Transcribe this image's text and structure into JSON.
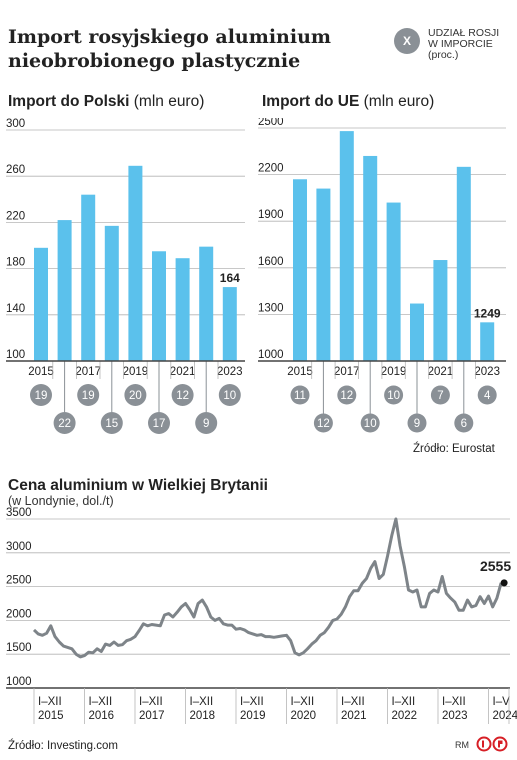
{
  "header": {
    "title_line1": "Import rosyjskiego aluminium",
    "title_line2": "nieobrobionego plastycznie"
  },
  "legend": {
    "symbol": "X",
    "line1": "UDZIAŁ ROSJI",
    "line2": "W IMPORCIE",
    "line3": "(proc.)"
  },
  "left_panel": {
    "title_bold": "Import do Polski",
    "title_unit": "(mln euro)"
  },
  "right_panel": {
    "title_bold": "Import do UE",
    "title_unit": "(mln euro)"
  },
  "source_top": "Źródło: Eurostat",
  "bottom_panel": {
    "title": "Cena aluminium w Wielkiej Brytanii",
    "subtitle": "(w Londynie, dol./t)"
  },
  "source_bottom": "Źródło: Investing.com",
  "credit": "RM",
  "colors": {
    "bar": "#5bc1ec",
    "badge": "#8a9096",
    "line": "#7e8489",
    "text": "#222222",
    "grid": "#b5b5b5"
  },
  "chart_data": [
    {
      "type": "bar",
      "title": "Import do Polski",
      "unit": "mln euro",
      "categories": [
        "2015",
        "2016",
        "2017",
        "2018",
        "2019",
        "2020",
        "2021",
        "2022",
        "2023"
      ],
      "x_tick_labels": [
        "2015",
        "2017",
        "2019",
        "2021",
        "2023"
      ],
      "values": [
        198,
        222,
        244,
        217,
        269,
        195,
        189,
        199,
        164
      ],
      "value_labels": [
        "",
        "",
        "",
        "",
        "",
        "",
        "",
        "",
        "164"
      ],
      "russia_share_pct": [
        19,
        22,
        19,
        15,
        20,
        17,
        12,
        9,
        10
      ],
      "ylim": [
        100,
        300
      ],
      "yticks": [
        100,
        140,
        180,
        220,
        260,
        300
      ],
      "grid": true
    },
    {
      "type": "bar",
      "title": "Import do UE",
      "unit": "mln euro",
      "categories": [
        "2015",
        "2016",
        "2017",
        "2018",
        "2019",
        "2020",
        "2021",
        "2022",
        "2023"
      ],
      "x_tick_labels": [
        "2015",
        "2017",
        "2019",
        "2021",
        "2023"
      ],
      "values": [
        2170,
        2110,
        2480,
        2320,
        2020,
        1370,
        1650,
        2250,
        1249
      ],
      "value_labels": [
        "",
        "",
        "",
        "",
        "",
        "",
        "",
        "",
        "1249"
      ],
      "russia_share_pct": [
        11,
        12,
        12,
        10,
        10,
        9,
        7,
        6,
        4
      ],
      "ylim": [
        1000,
        2500
      ],
      "yticks": [
        1000,
        1300,
        1600,
        1900,
        2200,
        2500
      ],
      "grid": true
    },
    {
      "type": "line",
      "title": "Cena aluminium w Wielkiej Brytanii",
      "subtitle": "(w Londynie, dol./t)",
      "x_start": "2015-01",
      "x_end": "2024-05",
      "x_tick_labels": [
        {
          "top": "I–XII",
          "bottom": "2015"
        },
        {
          "top": "I–XII",
          "bottom": "2016"
        },
        {
          "top": "I–XII",
          "bottom": "2017"
        },
        {
          "top": "I–XII",
          "bottom": "2018"
        },
        {
          "top": "I–XII",
          "bottom": "2019"
        },
        {
          "top": "I–XII",
          "bottom": "2020"
        },
        {
          "top": "I–XII",
          "bottom": "2021"
        },
        {
          "top": "I–XII",
          "bottom": "2022"
        },
        {
          "top": "I–XII",
          "bottom": "2023"
        },
        {
          "top": "I–V",
          "bottom": "2024"
        }
      ],
      "values": [
        1860,
        1800,
        1780,
        1810,
        1920,
        1760,
        1680,
        1620,
        1600,
        1580,
        1500,
        1460,
        1480,
        1530,
        1520,
        1580,
        1540,
        1650,
        1630,
        1680,
        1630,
        1640,
        1700,
        1720,
        1760,
        1850,
        1950,
        1920,
        1940,
        1930,
        1920,
        2080,
        2100,
        2050,
        2120,
        2200,
        2250,
        2160,
        2050,
        2250,
        2300,
        2200,
        2050,
        2000,
        2030,
        1950,
        1930,
        1930,
        1870,
        1880,
        1860,
        1820,
        1800,
        1780,
        1790,
        1760,
        1760,
        1750,
        1760,
        1770,
        1780,
        1700,
        1520,
        1490,
        1520,
        1580,
        1650,
        1700,
        1780,
        1820,
        1900,
        2000,
        2020,
        2090,
        2200,
        2350,
        2440,
        2440,
        2550,
        2620,
        2770,
        2870,
        2620,
        2680,
        2950,
        3250,
        3500,
        3100,
        2800,
        2450,
        2420,
        2450,
        2200,
        2200,
        2400,
        2450,
        2420,
        2650,
        2400,
        2330,
        2270,
        2150,
        2150,
        2300,
        2200,
        2220,
        2350,
        2250,
        2360,
        2200,
        2330,
        2555
      ],
      "last_value_label": "2555",
      "ylim": [
        1000,
        3500
      ],
      "yticks": [
        1000,
        1500,
        2000,
        2500,
        3000,
        3500
      ],
      "grid": true
    }
  ]
}
